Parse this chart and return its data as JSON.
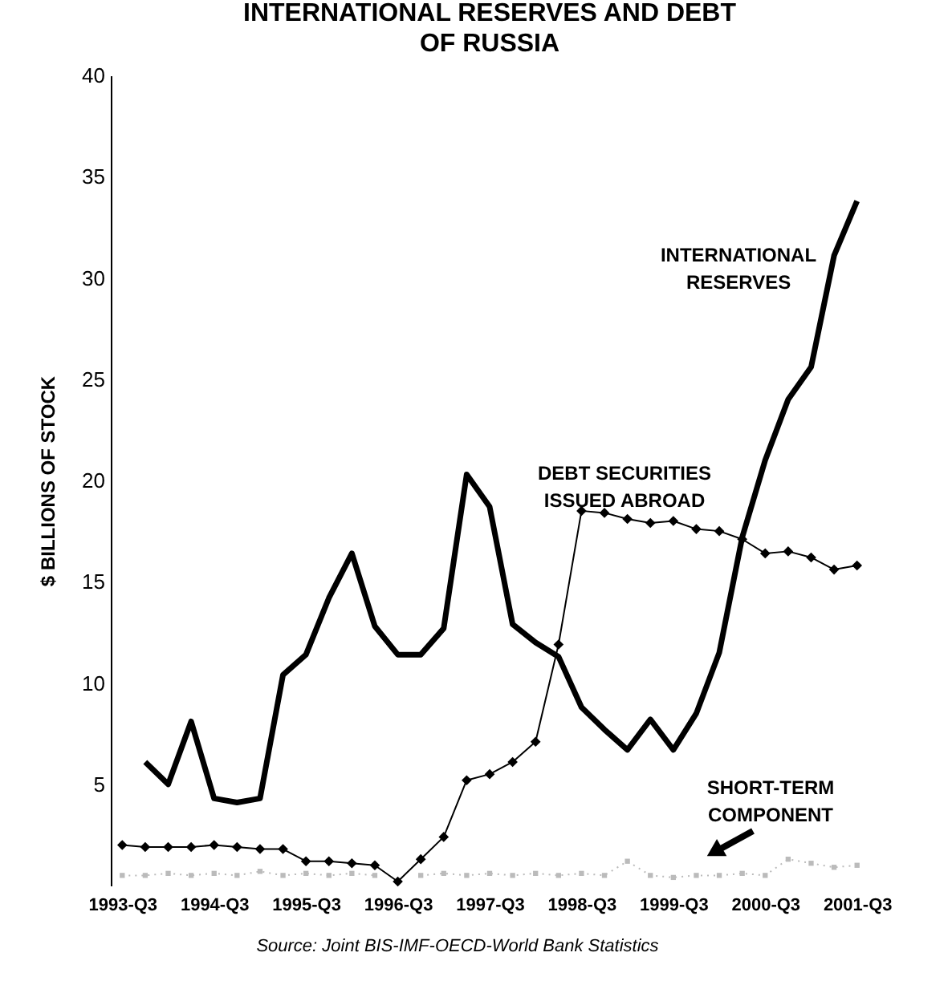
{
  "chart_data": {
    "type": "line",
    "title": "INTERNATIONAL RESERVES AND DEBT\nOF RUSSIA",
    "ylabel": "$ BILLIONS OF STOCK",
    "categories": [
      "1993-Q3",
      null,
      null,
      null,
      "1994-Q3",
      null,
      null,
      null,
      "1995-Q3",
      null,
      null,
      null,
      "1996-Q3",
      null,
      null,
      null,
      "1997-Q3",
      null,
      null,
      null,
      "1998-Q3",
      null,
      null,
      null,
      "1999-Q3",
      null,
      null,
      null,
      "2000-Q3",
      null,
      null,
      null,
      "2001-Q3"
    ],
    "series": [
      {
        "name": "INTERNATIONAL\nRESERVES",
        "color": "#000000",
        "marker": "none",
        "line_style": "solid",
        "values": [
          null,
          6.1,
          5.0,
          8.1,
          4.3,
          4.1,
          4.3,
          10.4,
          11.4,
          14.2,
          16.4,
          12.8,
          11.4,
          11.4,
          12.7,
          20.3,
          18.7,
          12.9,
          12.0,
          11.3,
          8.8,
          7.7,
          6.7,
          8.2,
          6.7,
          8.5,
          11.5,
          17.2,
          21.0,
          24.0,
          25.6,
          31.1,
          33.8
        ]
      },
      {
        "name": "DEBT SECURITIES\nISSUED ABROAD",
        "color": "#000000",
        "marker": "diamond",
        "line_style": "solid",
        "values": [
          2.0,
          1.9,
          1.9,
          1.9,
          2.0,
          1.9,
          1.8,
          1.8,
          1.2,
          1.2,
          1.1,
          1.0,
          0.2,
          1.3,
          2.4,
          5.2,
          5.5,
          6.1,
          7.1,
          11.9,
          18.5,
          18.4,
          18.1,
          17.9,
          18.0,
          17.6,
          17.5,
          17.1,
          16.4,
          16.5,
          16.2,
          15.6,
          15.8
        ]
      },
      {
        "name": "SHORT-TERM\nCOMPONENT",
        "color": "#bbbbbb",
        "marker": "square",
        "line_style": "dotted",
        "values": [
          0.5,
          0.5,
          0.6,
          0.5,
          0.6,
          0.5,
          0.7,
          0.5,
          0.6,
          0.5,
          0.6,
          0.5,
          null,
          0.5,
          0.6,
          0.5,
          0.6,
          0.5,
          0.6,
          0.5,
          0.6,
          0.5,
          1.2,
          0.5,
          0.4,
          0.5,
          0.5,
          0.6,
          0.5,
          1.3,
          1.1,
          0.9,
          1.0
        ]
      }
    ],
    "ylim": [
      0,
      40
    ],
    "yticks": [
      5,
      10,
      15,
      20,
      25,
      30,
      35,
      40
    ],
    "grid": false,
    "annotations": [
      "Source: Joint BIS-IMF-OECD-World Bank Statistics"
    ]
  }
}
